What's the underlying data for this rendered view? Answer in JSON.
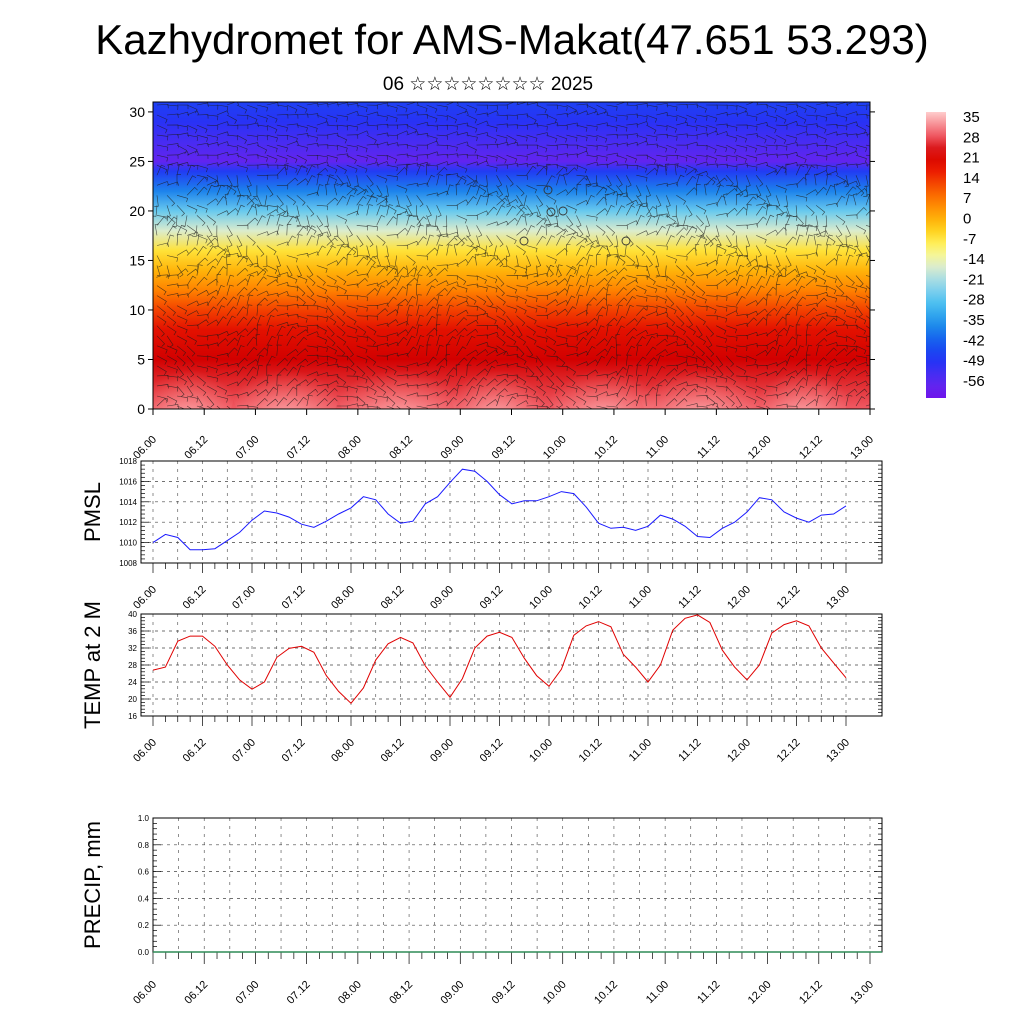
{
  "title": "Kazhydromet for AMS-Makat(47.651 53.293)",
  "subtitle": "06 ☆☆☆☆☆☆☆☆ 2025",
  "colors": {
    "pmsl_line": "#1a1aff",
    "temp_line": "#e00000",
    "precip_line": "#2e8b57"
  },
  "chart_data": [
    {
      "type": "heatmap",
      "name": "cross-section",
      "x_ticks": [
        "06.00",
        "06.12",
        "07.00",
        "07.12",
        "08.00",
        "08.12",
        "09.00",
        "09.12",
        "10.00",
        "10.12",
        "11.00",
        "11.12",
        "12.00",
        "12.12",
        "13.00"
      ],
      "y_ticks": [
        0,
        5,
        10,
        15,
        20,
        25,
        30
      ],
      "ylim": [
        0,
        31
      ],
      "colorbar": {
        "labels": [
          "35",
          "28",
          "21",
          "14",
          "7",
          "0",
          "-7",
          "-14",
          "-21",
          "-28",
          "-35",
          "-42",
          "-49",
          "-56"
        ],
        "range": [
          -60,
          38
        ]
      },
      "temperature_profile": [
        {
          "y": 0,
          "t": 30
        },
        {
          "y": 5,
          "t": 24
        },
        {
          "y": 8,
          "t": 20
        },
        {
          "y": 10,
          "t": 14
        },
        {
          "y": 12,
          "t": 7
        },
        {
          "y": 14,
          "t": 1
        },
        {
          "y": 16,
          "t": -5
        },
        {
          "y": 18,
          "t": -15
        },
        {
          "y": 20,
          "t": -25
        },
        {
          "y": 22,
          "t": -36
        },
        {
          "y": 24,
          "t": -46
        },
        {
          "y": 25,
          "t": -56
        },
        {
          "y": 27,
          "t": -52
        },
        {
          "y": 29,
          "t": -48
        },
        {
          "y": 31,
          "t": -45
        }
      ]
    },
    {
      "type": "line",
      "name": "pmsl",
      "ylabel": "PMSL",
      "x_ticks": [
        "06.00",
        "06.12",
        "07.00",
        "07.12",
        "08.00",
        "08.12",
        "09.00",
        "09.12",
        "10.00",
        "10.12",
        "11.00",
        "11.12",
        "12.00",
        "12.12",
        "13.00"
      ],
      "y_ticks": [
        "1008",
        "1010",
        "1012",
        "1014",
        "1016",
        "1018"
      ],
      "ylim": [
        1008,
        1018
      ],
      "x_hours_step": 3,
      "values": [
        1010.0,
        1010.8,
        1010.5,
        1009.3,
        1009.3,
        1009.4,
        1010.2,
        1011.0,
        1012.2,
        1013.1,
        1012.9,
        1012.5,
        1011.8,
        1011.5,
        1012.1,
        1012.8,
        1013.4,
        1014.5,
        1014.2,
        1012.8,
        1011.9,
        1012.1,
        1013.8,
        1014.5,
        1015.9,
        1017.2,
        1017.0,
        1016.0,
        1014.7,
        1013.8,
        1014.1,
        1014.1,
        1014.5,
        1015.0,
        1014.8,
        1013.5,
        1011.9,
        1011.4,
        1011.5,
        1011.2,
        1011.6,
        1012.7,
        1012.3,
        1011.6,
        1010.6,
        1010.5,
        1011.4,
        1012.0,
        1013.0,
        1014.4,
        1014.2,
        1013.0,
        1012.4,
        1012.0,
        1012.7,
        1012.8,
        1013.6
      ]
    },
    {
      "type": "line",
      "name": "temp",
      "ylabel": "TEMP at 2 M",
      "x_ticks": [
        "06.00",
        "06.12",
        "07.00",
        "07.12",
        "08.00",
        "08.12",
        "09.00",
        "09.12",
        "10.00",
        "10.12",
        "11.00",
        "11.12",
        "12.00",
        "12.12",
        "13.00"
      ],
      "y_ticks": [
        "16",
        "20",
        "24",
        "28",
        "32",
        "36",
        "40"
      ],
      "ylim": [
        16,
        40
      ],
      "x_hours_step": 3,
      "values": [
        26.8,
        27.5,
        33.6,
        34.8,
        34.8,
        32.4,
        28.0,
        24.5,
        22.3,
        24.0,
        29.8,
        31.9,
        32.4,
        31.0,
        25.5,
        21.8,
        19.0,
        22.6,
        29.2,
        33.0,
        34.5,
        33.2,
        27.8,
        24.0,
        20.4,
        24.8,
        32.0,
        34.8,
        35.7,
        34.5,
        29.6,
        25.5,
        23.0,
        27.0,
        35.0,
        37.2,
        38.2,
        37.0,
        30.5,
        27.5,
        24.0,
        28.0,
        36.2,
        39.0,
        39.8,
        38.0,
        31.5,
        27.5,
        24.5,
        28.0,
        35.5,
        37.5,
        38.4,
        37.2,
        32.0,
        28.5,
        25.0
      ]
    },
    {
      "type": "line",
      "name": "precip",
      "ylabel": "PRECIP, mm",
      "x_ticks": [
        "06.00",
        "06.12",
        "07.00",
        "07.12",
        "08.00",
        "08.12",
        "09.00",
        "09.12",
        "10.00",
        "10.12",
        "11.00",
        "11.12",
        "12.00",
        "12.12",
        "13.00"
      ],
      "y_ticks": [
        "0.0",
        "0.2",
        "0.4",
        "0.6",
        "0.8",
        "1.0"
      ],
      "ylim": [
        0,
        1
      ],
      "values": [
        0,
        0,
        0,
        0,
        0,
        0,
        0,
        0,
        0,
        0,
        0,
        0,
        0,
        0,
        0
      ]
    }
  ]
}
